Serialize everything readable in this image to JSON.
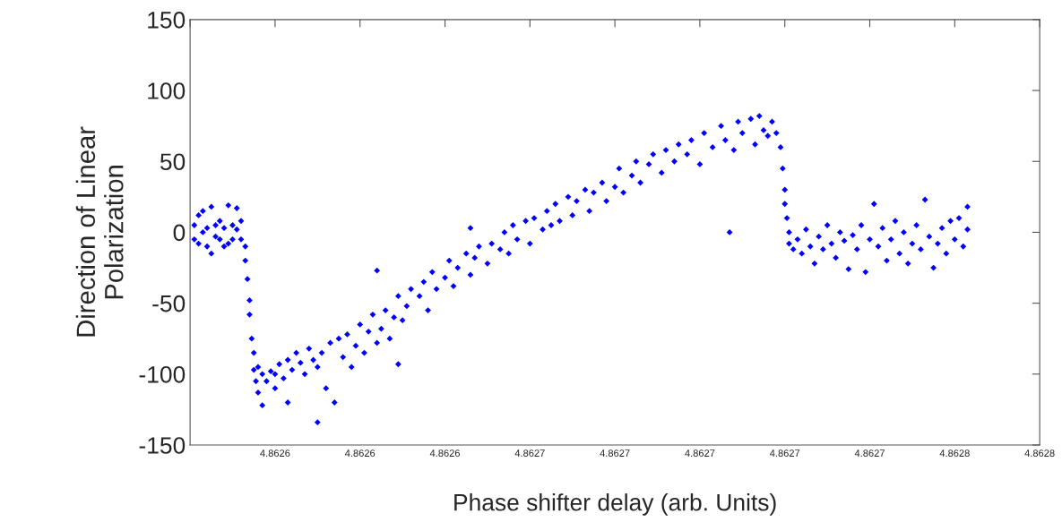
{
  "chart_data": {
    "type": "scatter",
    "xlabel": "Phase shifter delay (arb. Units)",
    "ylabel": "Direction of Linear\nPolarization",
    "x": [
      4.862576,
      4.862576,
      4.862577,
      4.862577,
      4.862578,
      4.862578,
      4.862579,
      4.862579,
      4.86258,
      4.86258,
      4.862581,
      4.862581,
      4.862582,
      4.862582,
      4.862583,
      4.862583,
      4.862584,
      4.862584,
      4.862585,
      4.862585,
      4.862586,
      4.862586,
      4.862587,
      4.862587,
      4.862588,
      4.862588,
      4.8625885,
      4.862589,
      4.862589,
      4.8625895,
      4.86259,
      4.86259,
      4.8625905,
      4.862591,
      4.862591,
      4.862592,
      4.862592,
      4.862593,
      4.862594,
      4.862595,
      4.862595,
      4.862596,
      4.862597,
      4.862598,
      4.862598,
      4.862599,
      4.8626,
      4.862601,
      4.862602,
      4.862603,
      4.862604,
      4.862605,
      4.862605,
      4.862606,
      4.862607,
      4.862608,
      4.862609,
      4.86261,
      4.862611,
      4.862612,
      4.862613,
      4.862614,
      4.862615,
      4.862616,
      4.862617,
      4.862618,
      4.862619,
      4.862619,
      4.86262,
      4.862621,
      4.862622,
      4.862623,
      4.862624,
      4.862625,
      4.862626,
      4.862627,
      4.862624,
      4.862629,
      4.86263,
      4.862631,
      4.862632,
      4.862633,
      4.862635,
      4.862636,
      4.862637,
      4.862638,
      4.86264,
      4.862641,
      4.862642,
      4.862643,
      4.862641,
      4.862645,
      4.862646,
      4.862648,
      4.862649,
      4.86265,
      4.862651,
      4.862652,
      4.862654,
      4.862655,
      4.862656,
      4.862658,
      4.862659,
      4.86266,
      4.862661,
      4.862662,
      4.862664,
      4.862665,
      4.862666,
      4.862668,
      4.862669,
      4.86267,
      4.862672,
      4.862673,
      4.862675,
      4.862676,
      4.862677,
      4.862679,
      4.86268,
      4.862681,
      4.862683,
      4.862684,
      4.862686,
      4.862687,
      4.862689,
      4.86269,
      4.862692,
      4.862693,
      4.862695,
      4.862696,
      4.862698,
      4.862702,
      4.8627,
      4.862701,
      4.862703,
      4.862704,
      4.862705,
      4.862707,
      4.862708,
      4.862709,
      4.86271,
      4.862711,
      4.862712,
      4.862713,
      4.862714,
      4.8627145,
      4.862715,
      4.862715,
      4.8627155,
      4.862716,
      4.862716,
      4.862717,
      4.862718,
      4.862719,
      4.86272,
      4.862721,
      4.862722,
      4.862723,
      4.862724,
      4.862725,
      4.862726,
      4.862727,
      4.862728,
      4.862729,
      4.86273,
      4.862731,
      4.862732,
      4.862733,
      4.862734,
      4.862735,
      4.862736,
      4.862737,
      4.862738,
      4.862739,
      4.86274,
      4.862741,
      4.862742,
      4.862743,
      4.862744,
      4.862745,
      4.862746,
      4.862747,
      4.862748,
      4.862749,
      4.86275,
      4.862751,
      4.862752,
      4.862753,
      4.862754,
      4.862755,
      4.862756,
      4.862757,
      4.862758,
      4.862758
    ],
    "series": [
      {
        "color": "#0000ff",
        "values": [
          5,
          -5,
          12,
          -8,
          0,
          15,
          -10,
          3,
          -15,
          18,
          5,
          -3,
          -5,
          8,
          -10,
          3,
          19,
          -8,
          5,
          -5,
          17,
          2,
          8,
          -5,
          -10,
          -20,
          -33,
          -48,
          -58,
          -75,
          -85,
          -97,
          -105,
          -113,
          -95,
          -122,
          -100,
          -105,
          -98,
          -110,
          -100,
          -93,
          -103,
          -120,
          -90,
          -97,
          -85,
          -92,
          -100,
          -82,
          -90,
          -134,
          -95,
          -85,
          -110,
          -78,
          -120,
          -75,
          -88,
          -72,
          -95,
          -80,
          -65,
          -85,
          -70,
          -58,
          -78,
          -27,
          -68,
          -55,
          -75,
          -60,
          -45,
          -62,
          -52,
          -40,
          -93,
          -45,
          -35,
          -55,
          -28,
          -40,
          -32,
          -20,
          -38,
          -25,
          -15,
          -30,
          -18,
          -10,
          3,
          -22,
          -8,
          -12,
          0,
          -15,
          5,
          -5,
          8,
          -8,
          10,
          2,
          15,
          5,
          20,
          8,
          25,
          12,
          22,
          30,
          15,
          28,
          35,
          22,
          32,
          45,
          28,
          40,
          50,
          35,
          48,
          55,
          42,
          58,
          50,
          62,
          55,
          65,
          48,
          70,
          60,
          0,
          75,
          65,
          58,
          78,
          70,
          80,
          62,
          82,
          72,
          68,
          78,
          70,
          60,
          45,
          30,
          20,
          10,
          0,
          -8,
          -12,
          -5,
          -15,
          2,
          -10,
          -22,
          -3,
          -12,
          5,
          -8,
          -18,
          0,
          -6,
          -26,
          -2,
          -12,
          5,
          -28,
          -5,
          20,
          -10,
          3,
          -20,
          -5,
          8,
          -15,
          0,
          -22,
          -8,
          5,
          -12,
          23,
          -3,
          -25,
          -8,
          3,
          -15,
          8,
          -5,
          10,
          -10,
          18,
          2
        ]
      }
    ],
    "marker": "diamond",
    "xlim": [
      4.862575,
      4.862775
    ],
    "xticks": [
      {
        "value": 4.862575,
        "label": null
      },
      {
        "value": 4.862595,
        "label": "4.8626"
      },
      {
        "value": 4.862615,
        "label": "4.8626"
      },
      {
        "value": 4.862635,
        "label": "4.8626"
      },
      {
        "value": 4.862655,
        "label": "4.8627"
      },
      {
        "value": 4.862675,
        "label": "4.8627"
      },
      {
        "value": 4.862695,
        "label": "4.8627"
      },
      {
        "value": 4.862715,
        "label": "4.8627"
      },
      {
        "value": 4.862735,
        "label": "4.8627"
      },
      {
        "value": 4.862755,
        "label": "4.8628"
      },
      {
        "value": 4.862775,
        "label": "4.8628"
      }
    ],
    "ylim": [
      -150,
      150
    ],
    "yticks": [
      -150,
      -100,
      -50,
      0,
      50,
      100,
      150
    ],
    "grid": false,
    "legend": false
  }
}
